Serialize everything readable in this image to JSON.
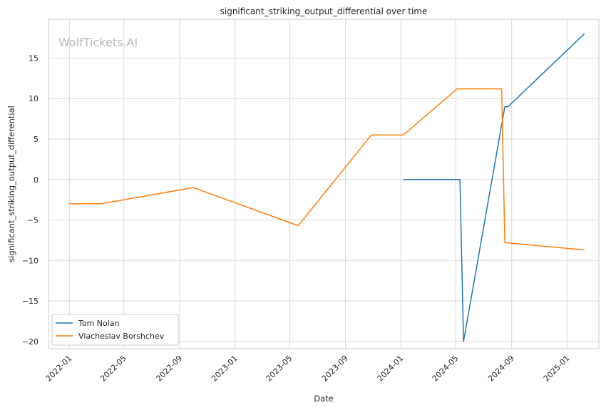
{
  "chart_data": {
    "type": "line",
    "title": "significant_striking_output_differential over time",
    "xlabel": "Date",
    "ylabel": "significant_striking_output_differential",
    "watermark": "WolfTickets.AI",
    "x_ticks": [
      "2022-01",
      "2022-05",
      "2022-09",
      "2023-01",
      "2023-05",
      "2023-09",
      "2024-01",
      "2024-05",
      "2024-09",
      "2025-01"
    ],
    "y_ticks": [
      -20,
      -15,
      -10,
      -5,
      0,
      5,
      10,
      15
    ],
    "xlim": [
      "2021-11-16",
      "2025-03-12"
    ],
    "ylim": [
      -20.9,
      19.8
    ],
    "grid": true,
    "legend_position": "lower-left",
    "series": [
      {
        "name": "Tom Nolan",
        "color": "#1f77b4",
        "points": [
          [
            "2024-01-06",
            0
          ],
          [
            "2024-05-10",
            0
          ],
          [
            "2024-05-18",
            -20
          ],
          [
            "2024-08-17",
            9
          ],
          [
            "2024-08-24",
            9
          ],
          [
            "2025-02-08",
            18
          ]
        ]
      },
      {
        "name": "Viacheslav Borshchev",
        "color": "#ff7f0e",
        "points": [
          [
            "2022-01-01",
            -3
          ],
          [
            "2022-03-12",
            -3
          ],
          [
            "2022-10-01",
            -1
          ],
          [
            "2023-05-20",
            -5.7
          ],
          [
            "2023-10-28",
            5.5
          ],
          [
            "2024-01-06",
            5.5
          ],
          [
            "2024-05-04",
            11.2
          ],
          [
            "2024-08-10",
            11.2
          ],
          [
            "2024-08-17",
            -7.8
          ],
          [
            "2025-02-08",
            -8.7
          ]
        ]
      }
    ]
  }
}
